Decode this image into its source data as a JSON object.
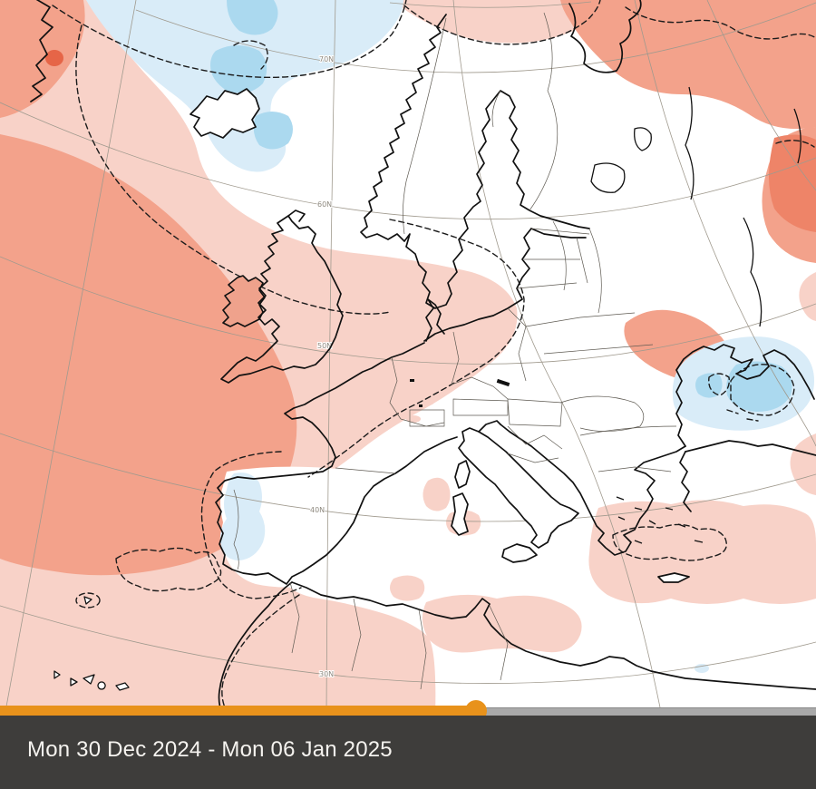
{
  "map": {
    "description": "weather anomaly forecast map of Europe and North Atlantic",
    "grid_labels": [
      {
        "text": "70N"
      },
      {
        "text": "60N"
      },
      {
        "text": "50N"
      },
      {
        "text": "40N"
      },
      {
        "text": "30N"
      }
    ],
    "colors": {
      "positive_anomaly_light": "#f8d2c8",
      "positive_anomaly_medium": "#f3a28b",
      "positive_anomaly_strong": "#ee8468",
      "positive_anomaly_max": "#e66547",
      "negative_anomaly_light": "#d9ecf8",
      "negative_anomaly_medium": "#abd9ef",
      "coastline": "#111111",
      "country_border": "#5e5a52",
      "gridline": "#a09a8e",
      "anomaly_contour": "#1b1b1b"
    }
  },
  "timeline": {
    "progress_percent": 58.3,
    "filled_color": "#e8921b",
    "empty_color": "#a9a9a9",
    "handle_color": "#e8921b"
  },
  "footer": {
    "date_range": "Mon 30 Dec 2024 - Mon 06 Jan 2025",
    "background": "#3e3d3b"
  }
}
